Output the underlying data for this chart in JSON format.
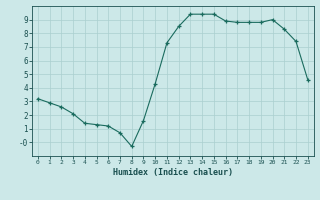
{
  "x": [
    0,
    1,
    2,
    3,
    4,
    5,
    6,
    7,
    8,
    9,
    10,
    11,
    12,
    13,
    14,
    15,
    16,
    17,
    18,
    19,
    20,
    21,
    22,
    23
  ],
  "y": [
    3.2,
    2.9,
    2.6,
    2.1,
    1.4,
    1.3,
    1.2,
    0.7,
    -0.3,
    1.6,
    4.3,
    7.3,
    8.5,
    9.4,
    9.4,
    9.4,
    8.9,
    8.8,
    8.8,
    8.8,
    9.0,
    8.3,
    7.4,
    4.6
  ],
  "xlabel": "Humidex (Indice chaleur)",
  "line_color": "#1a6b5e",
  "marker": "+",
  "bg_color": "#cce8e8",
  "grid_color": "#aacfcf",
  "tick_color": "#1a5050",
  "label_color": "#1a5050",
  "xlim": [
    -0.5,
    23.5
  ],
  "ylim": [
    -1.0,
    10.0
  ],
  "yticks": [
    0,
    1,
    2,
    3,
    4,
    5,
    6,
    7,
    8,
    9
  ],
  "ytick_labels": [
    "-0",
    "1",
    "2",
    "3",
    "4",
    "5",
    "6",
    "7",
    "8",
    "9"
  ],
  "xticks": [
    0,
    1,
    2,
    3,
    4,
    5,
    6,
    7,
    8,
    9,
    10,
    11,
    12,
    13,
    14,
    15,
    16,
    17,
    18,
    19,
    20,
    21,
    22,
    23
  ],
  "xtick_labels": [
    "0",
    "1",
    "2",
    "3",
    "4",
    "5",
    "6",
    "7",
    "8",
    "9",
    "10",
    "11",
    "12",
    "13",
    "14",
    "15",
    "16",
    "17",
    "18",
    "19",
    "20",
    "21",
    "22",
    "23"
  ]
}
